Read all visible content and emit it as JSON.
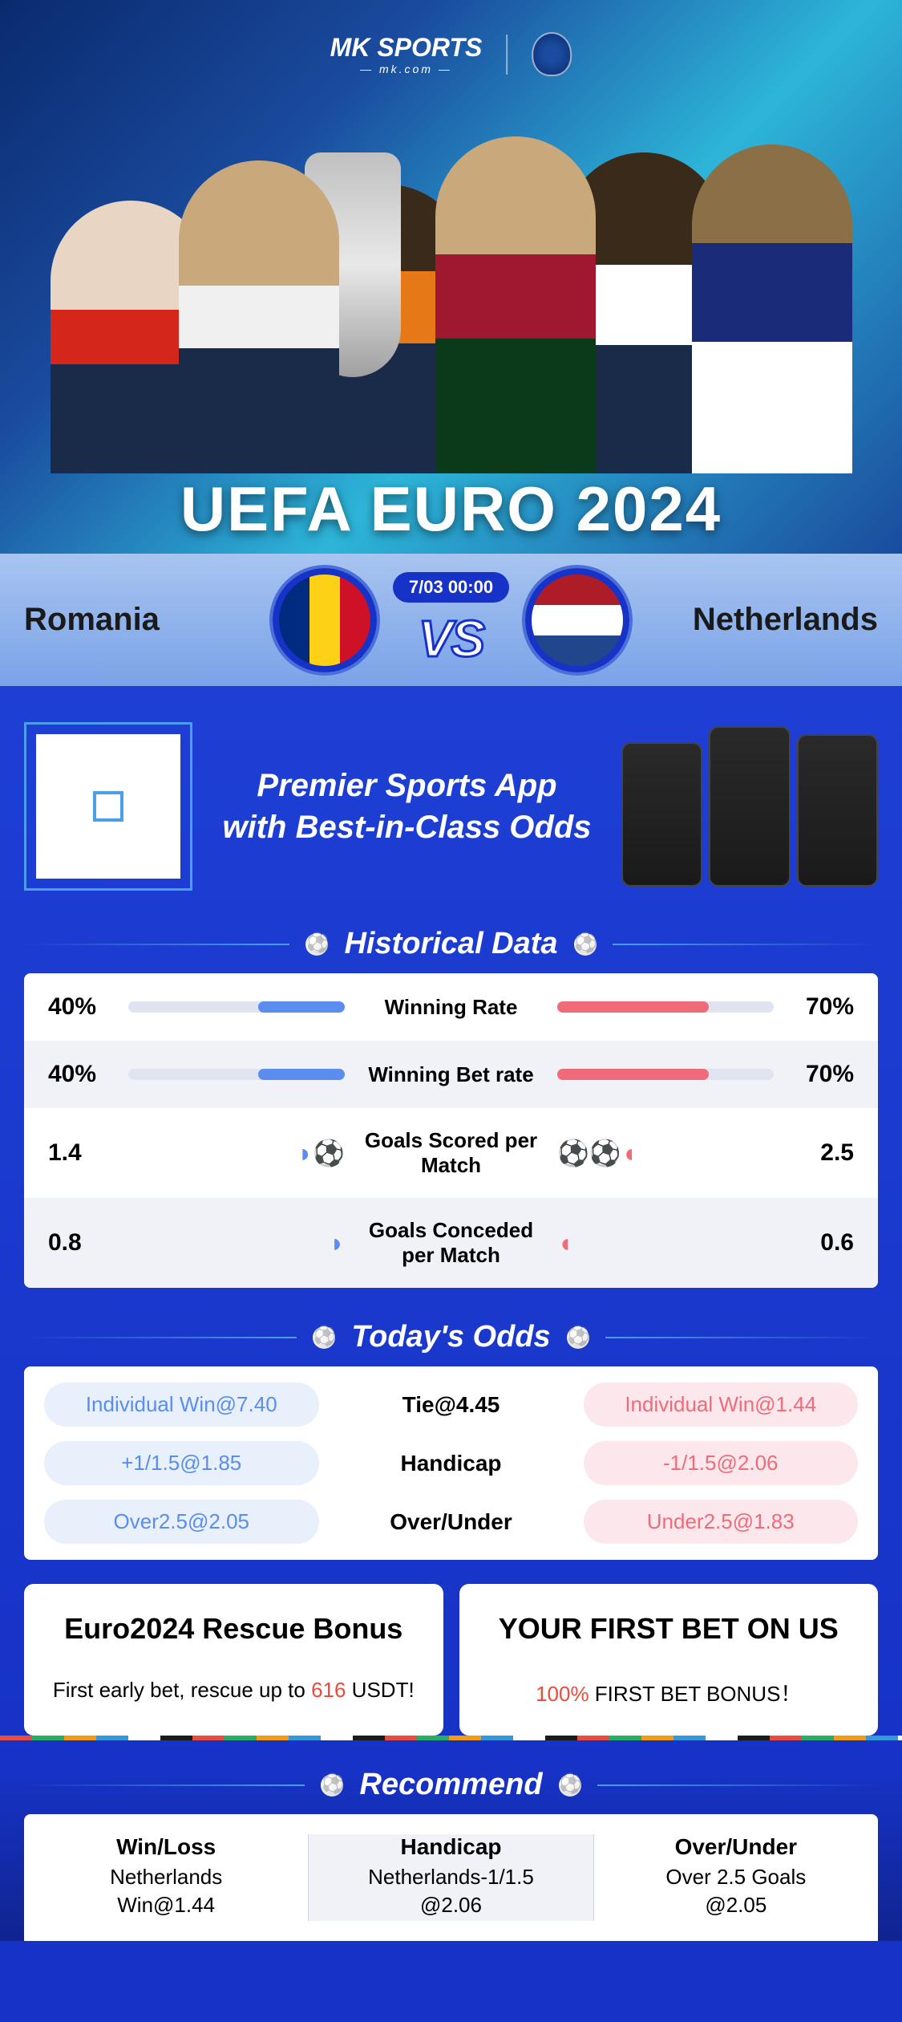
{
  "brand": {
    "name": "MK SPORTS",
    "subtitle": "— mk.com —"
  },
  "hero": {
    "title": "UEFA EURO 2024"
  },
  "match": {
    "team_a": "Romania",
    "team_b": "Netherlands",
    "datetime": "7/03 00:00",
    "vs": "VS"
  },
  "promo": {
    "line1": "Premier Sports App",
    "line2": "with Best-in-Class Odds"
  },
  "historical": {
    "title": "Historical Data",
    "rows": [
      {
        "left_value": "40%",
        "right_value": "70%",
        "label": "Winning Rate",
        "type": "bar",
        "left_pct": 40,
        "right_pct": 70
      },
      {
        "left_value": "40%",
        "right_value": "70%",
        "label": "Winning Bet rate",
        "type": "bar",
        "left_pct": 40,
        "right_pct": 70
      },
      {
        "left_value": "1.4",
        "right_value": "2.5",
        "label": "Goals Scored per Match",
        "type": "goals",
        "left_icons": "◗⚽",
        "right_icons": "⚽⚽◖"
      },
      {
        "left_value": "0.8",
        "right_value": "0.6",
        "label": "Goals Conceded per Match",
        "type": "goals",
        "left_icons": "◗",
        "right_icons": "◖"
      }
    ]
  },
  "odds": {
    "title": "Today's Odds",
    "rows": [
      {
        "left": "Individual Win@7.40",
        "center": "Tie@4.45",
        "right": "Individual Win@1.44"
      },
      {
        "left": "+1/1.5@1.85",
        "center": "Handicap",
        "right": "-1/1.5@2.06"
      },
      {
        "left": "Over2.5@2.05",
        "center": "Over/Under",
        "right": "Under2.5@1.83"
      }
    ]
  },
  "bonuses": [
    {
      "title": "Euro2024 Rescue Bonus",
      "desc_pre": "First early bet, rescue up to ",
      "desc_highlight": "616",
      "desc_post": " USDT!"
    },
    {
      "title": "YOUR FIRST BET ON US",
      "desc_pre": "",
      "desc_highlight": "100%",
      "desc_post": " FIRST BET BONUS！"
    }
  ],
  "recommend": {
    "title": "Recommend",
    "cols": [
      {
        "label": "Win/Loss",
        "line1": "Netherlands",
        "line2": "Win@1.44"
      },
      {
        "label": "Handicap",
        "line1": "Netherlands-1/1.5",
        "line2": "@2.06"
      },
      {
        "label": "Over/Under",
        "line1": "Over 2.5 Goals",
        "line2": "@2.05"
      }
    ]
  },
  "colors": {
    "primary_blue": "#1733c7",
    "accent_blue": "#5b8def",
    "accent_pink": "#f06b7a",
    "red": "#e74c3c"
  }
}
